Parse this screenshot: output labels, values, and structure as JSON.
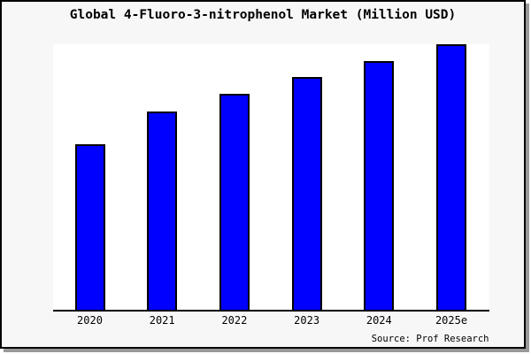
{
  "figure": {
    "background": "#f7f7f7",
    "border_color": "#000000",
    "shadow_color": "#999999"
  },
  "chart_data": {
    "type": "bar",
    "title": "Global 4-Fluoro-3-nitrophenol Market (Million USD)",
    "categories": [
      "2020",
      "2021",
      "2022",
      "2023",
      "2024",
      "2025e"
    ],
    "values_relative_height_pct": [
      62.3,
      74.8,
      81.3,
      87.6,
      93.6,
      100
    ],
    "xlabel": "",
    "ylabel": "",
    "ylim": [
      0,
      100
    ],
    "y_axis_visible": false,
    "gridlines": false,
    "legend": false,
    "source": "Source: Prof Research",
    "colors": {
      "bar_fill": "#0000ff",
      "bar_border": "#000000",
      "axis_line": "#000000",
      "plot_background": "#ffffff"
    }
  }
}
